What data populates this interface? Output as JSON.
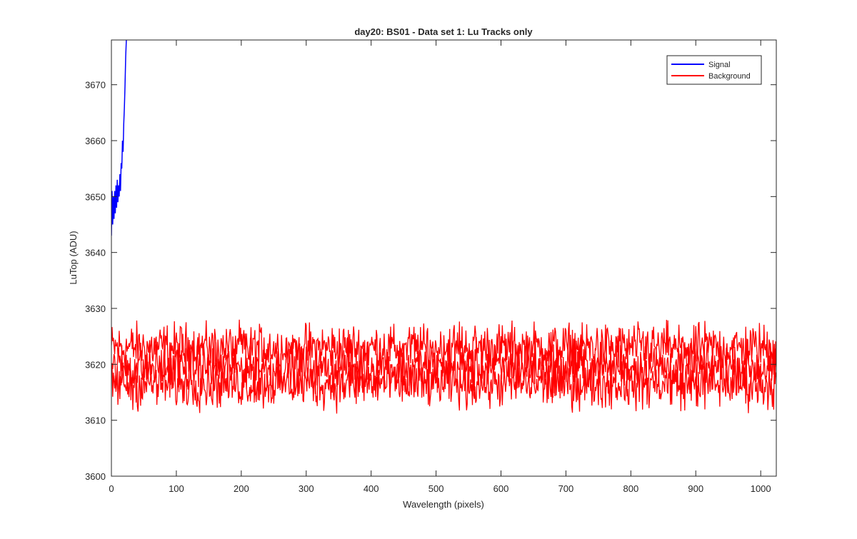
{
  "chart_data": {
    "type": "line",
    "title": "day20: BS01 - Data set 1: Lu Tracks only",
    "xlabel": "Wavelength (pixels)",
    "ylabel": "LuTop (ADU)",
    "xlim": [
      0,
      1024
    ],
    "ylim": [
      3600,
      3678
    ],
    "x_ticks": [
      0,
      100,
      200,
      300,
      400,
      500,
      600,
      700,
      800,
      900,
      1000
    ],
    "y_ticks": [
      3600,
      3610,
      3620,
      3630,
      3640,
      3650,
      3660,
      3670
    ],
    "grid": false,
    "legend": {
      "position": "top-right"
    },
    "series": [
      {
        "name": "Signal",
        "color": "#0000ff",
        "x": [
          0,
          1,
          2,
          3,
          4,
          5,
          6,
          7,
          8,
          9,
          10,
          11,
          12,
          13,
          14,
          15,
          16,
          17,
          18,
          19,
          20,
          21,
          22,
          23
        ],
        "y": [
          3643,
          3651,
          3645,
          3650,
          3646,
          3651,
          3647,
          3652,
          3648,
          3653,
          3649,
          3652,
          3650,
          3654,
          3651,
          3656,
          3655,
          3660,
          3658,
          3663,
          3666,
          3670,
          3675,
          3678
        ]
      },
      {
        "name": "Background",
        "color": "#ff0000",
        "x_range": [
          0,
          1024
        ],
        "tracks": [
          {
            "mean": 3623,
            "amplitude": 3.0
          },
          {
            "mean": 3619.5,
            "amplitude": 3.0
          },
          {
            "mean": 3616.5,
            "amplitude": 3.0
          }
        ],
        "min": 3610,
        "max": 3628
      }
    ]
  }
}
